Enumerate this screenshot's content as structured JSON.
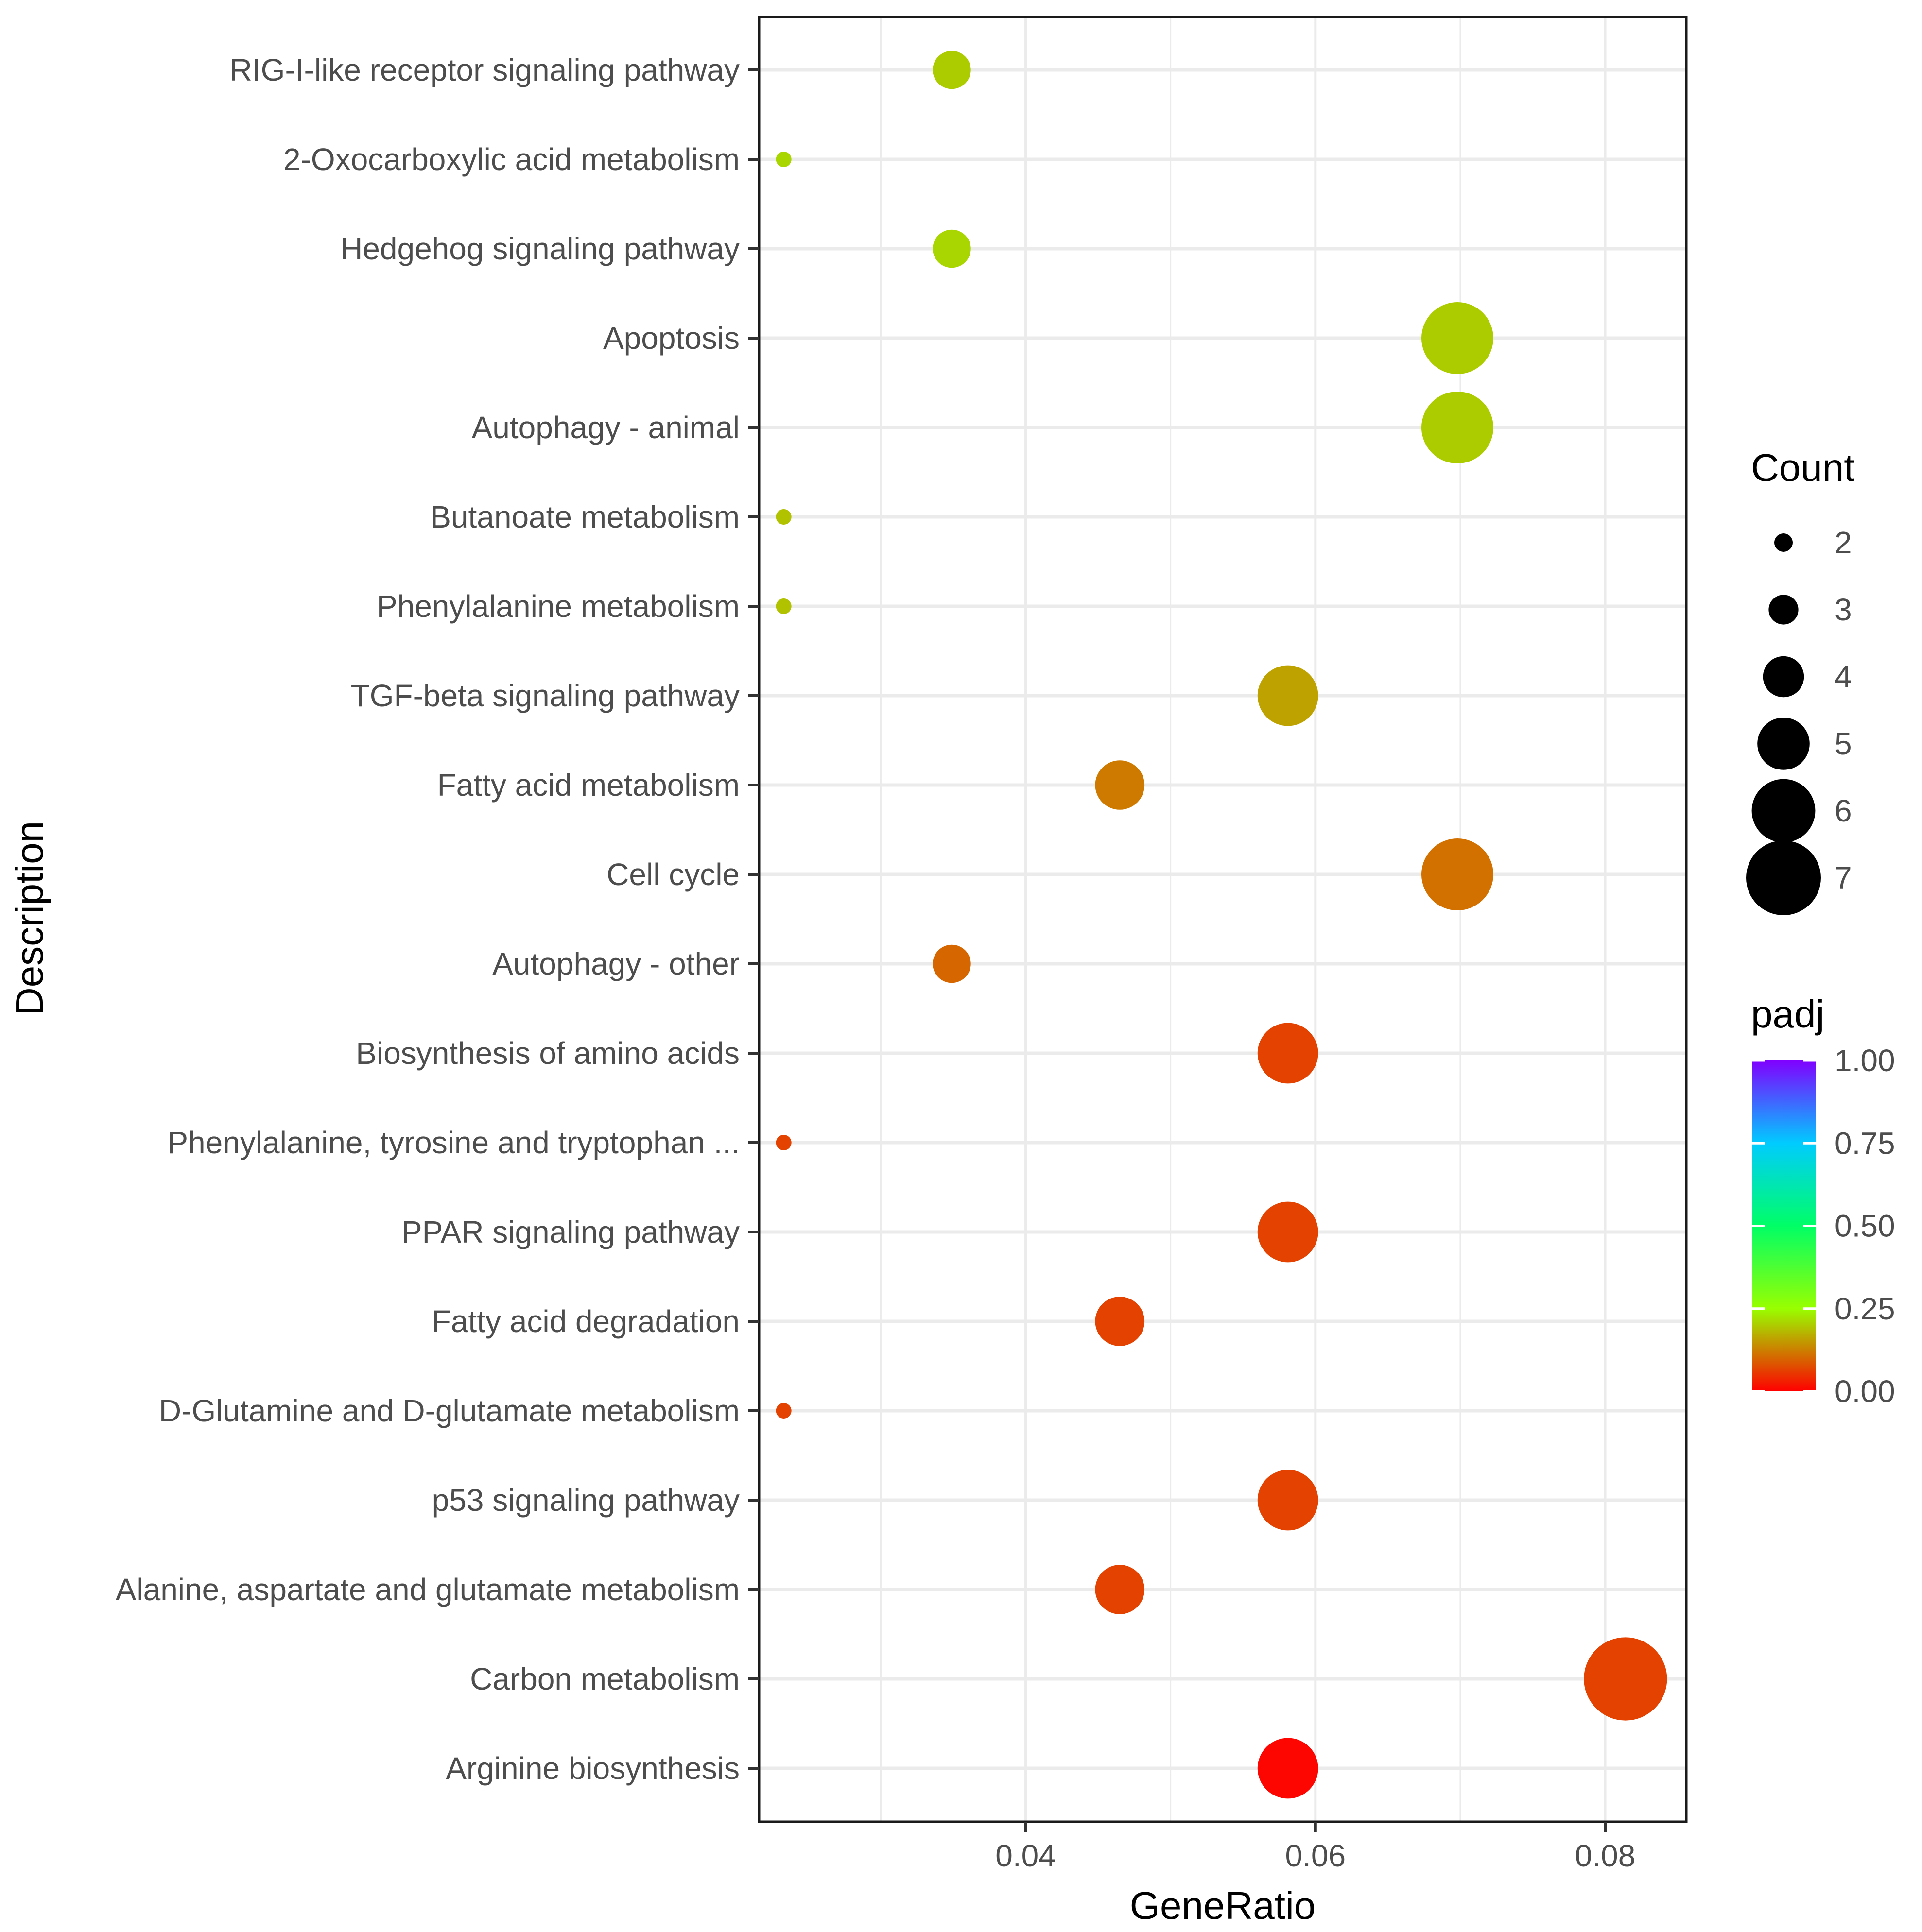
{
  "chart_data": {
    "type": "scatter",
    "title": "",
    "xlabel": "GeneRatio",
    "ylabel": "Description",
    "xlim": [
      0.0216,
      0.0856
    ],
    "xticks": [
      0.04,
      0.06,
      0.08
    ],
    "xtick_labels": [
      "0.04",
      "0.06",
      "0.08"
    ],
    "grid": true,
    "legend_position": "right",
    "points": [
      {
        "label": "RIG-I-like receptor signaling pathway",
        "x": 0.0349,
        "count": 3,
        "padj": 0.2
      },
      {
        "label": "2-Oxocarboxylic acid metabolism",
        "x": 0.0233,
        "count": 1,
        "padj": 0.21
      },
      {
        "label": "Hedgehog signaling pathway",
        "x": 0.0349,
        "count": 3,
        "padj": 0.21
      },
      {
        "label": "Apoptosis",
        "x": 0.0698,
        "count": 6,
        "padj": 0.2
      },
      {
        "label": "Autophagy - animal",
        "x": 0.0698,
        "count": 6,
        "padj": 0.2
      },
      {
        "label": "Butanoate metabolism",
        "x": 0.0233,
        "count": 1,
        "padj": 0.19
      },
      {
        "label": "Phenylalanine metabolism",
        "x": 0.0233,
        "count": 1,
        "padj": 0.19
      },
      {
        "label": "TGF-beta signaling pathway",
        "x": 0.0581,
        "count": 5,
        "padj": 0.16
      },
      {
        "label": "Fatty acid metabolism",
        "x": 0.0465,
        "count": 4,
        "padj": 0.12
      },
      {
        "label": "Cell cycle",
        "x": 0.0698,
        "count": 6,
        "padj": 0.11
      },
      {
        "label": "Autophagy - other",
        "x": 0.0349,
        "count": 3,
        "padj": 0.1
      },
      {
        "label": "Biosynthesis of amino acids",
        "x": 0.0581,
        "count": 5,
        "padj": 0.065
      },
      {
        "label": "Phenylalanine, tyrosine and tryptophan ...",
        "x": 0.0233,
        "count": 1,
        "padj": 0.065
      },
      {
        "label": "PPAR signaling pathway",
        "x": 0.0581,
        "count": 5,
        "padj": 0.065
      },
      {
        "label": "Fatty acid degradation",
        "x": 0.0465,
        "count": 4,
        "padj": 0.065
      },
      {
        "label": "D-Glutamine and D-glutamate metabolism",
        "x": 0.0233,
        "count": 1,
        "padj": 0.065
      },
      {
        "label": "p53 signaling pathway",
        "x": 0.0581,
        "count": 5,
        "padj": 0.065
      },
      {
        "label": "Alanine, aspartate and glutamate metabolism",
        "x": 0.0465,
        "count": 4,
        "padj": 0.065
      },
      {
        "label": "Carbon metabolism",
        "x": 0.0814,
        "count": 7,
        "padj": 0.065
      },
      {
        "label": "Arginine biosynthesis",
        "x": 0.0581,
        "count": 5,
        "padj": 0.005
      }
    ],
    "size_legend": {
      "title": "Count",
      "entries": [
        {
          "label": "2",
          "value": 2
        },
        {
          "label": "3",
          "value": 3
        },
        {
          "label": "4",
          "value": 4
        },
        {
          "label": "5",
          "value": 5
        },
        {
          "label": "6",
          "value": 6
        },
        {
          "label": "7",
          "value": 7
        }
      ]
    },
    "color_legend": {
      "title": "padj",
      "range": [
        0,
        1
      ],
      "tick_values": [
        1.0,
        0.75,
        0.5,
        0.25,
        0.0
      ],
      "tick_labels": [
        "1.00",
        "0.75",
        "0.50",
        "0.25",
        "0.00"
      ],
      "gradient": [
        {
          "v": 0.0,
          "color": "#ff0000"
        },
        {
          "v": 0.25,
          "color": "#99ff00"
        },
        {
          "v": 0.5,
          "color": "#00ff66"
        },
        {
          "v": 0.75,
          "color": "#00ccff"
        },
        {
          "v": 1.0,
          "color": "#8000ff"
        }
      ]
    },
    "colors": {
      "grid": "#ebebeb",
      "panel_border": "#1a1a1a",
      "tick_text": "#4d4d4d",
      "title_text": "#000000",
      "marker_legend": "#000000"
    }
  }
}
